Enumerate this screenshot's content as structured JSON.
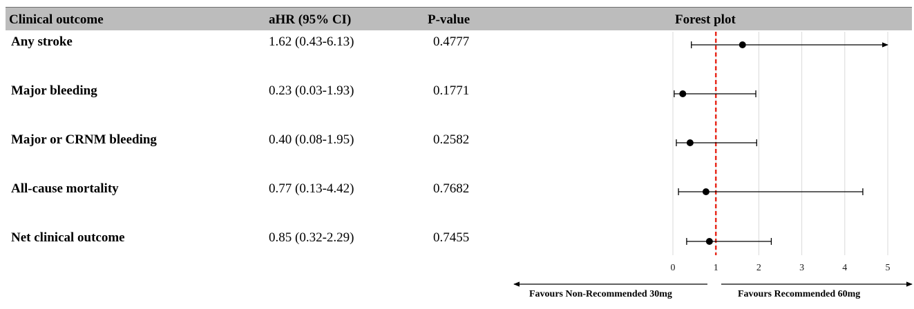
{
  "table": {
    "headers": {
      "outcome": "Clinical outcome",
      "ahr": "aHR (95% CI)",
      "pvalue": "P-value",
      "plot": "Forest plot"
    },
    "rows": [
      {
        "outcome": "Any stroke",
        "ahr_text": "1.62 (0.43-6.13)",
        "pvalue": "0.4777"
      },
      {
        "outcome": "Major bleeding",
        "ahr_text": "0.23 (0.03-1.93)",
        "pvalue": "0.1771"
      },
      {
        "outcome": "Major or CRNM bleeding",
        "ahr_text": "0.40 (0.08-1.95)",
        "pvalue": "0.2582"
      },
      {
        "outcome": "All-cause mortality",
        "ahr_text": "0.77 (0.13-4.42)",
        "pvalue": "0.7682"
      },
      {
        "outcome": "Net clinical outcome",
        "ahr_text": "0.85 (0.32-2.29)",
        "pvalue": "0.7455"
      }
    ]
  },
  "favours": {
    "left": "Favours Non-Recommended 30mg",
    "right": "Favours Recommended 60mg"
  },
  "chart_data": {
    "type": "forest",
    "title": "Forest plot",
    "xlim": [
      0,
      5
    ],
    "xticks": [
      0,
      1,
      2,
      3,
      4,
      5
    ],
    "reference_line": 1,
    "reference_line_color": "#e8291c",
    "grid": true,
    "series": [
      {
        "name": "Any stroke",
        "hr": 1.62,
        "lower": 0.43,
        "upper": 6.13,
        "truncated_upper": true
      },
      {
        "name": "Major bleeding",
        "hr": 0.23,
        "lower": 0.03,
        "upper": 1.93
      },
      {
        "name": "Major or CRNM bleeding",
        "hr": 0.4,
        "lower": 0.08,
        "upper": 1.95
      },
      {
        "name": "All-cause mortality",
        "hr": 0.77,
        "lower": 0.13,
        "upper": 4.42
      },
      {
        "name": "Net clinical outcome",
        "hr": 0.85,
        "lower": 0.32,
        "upper": 2.29
      }
    ]
  }
}
